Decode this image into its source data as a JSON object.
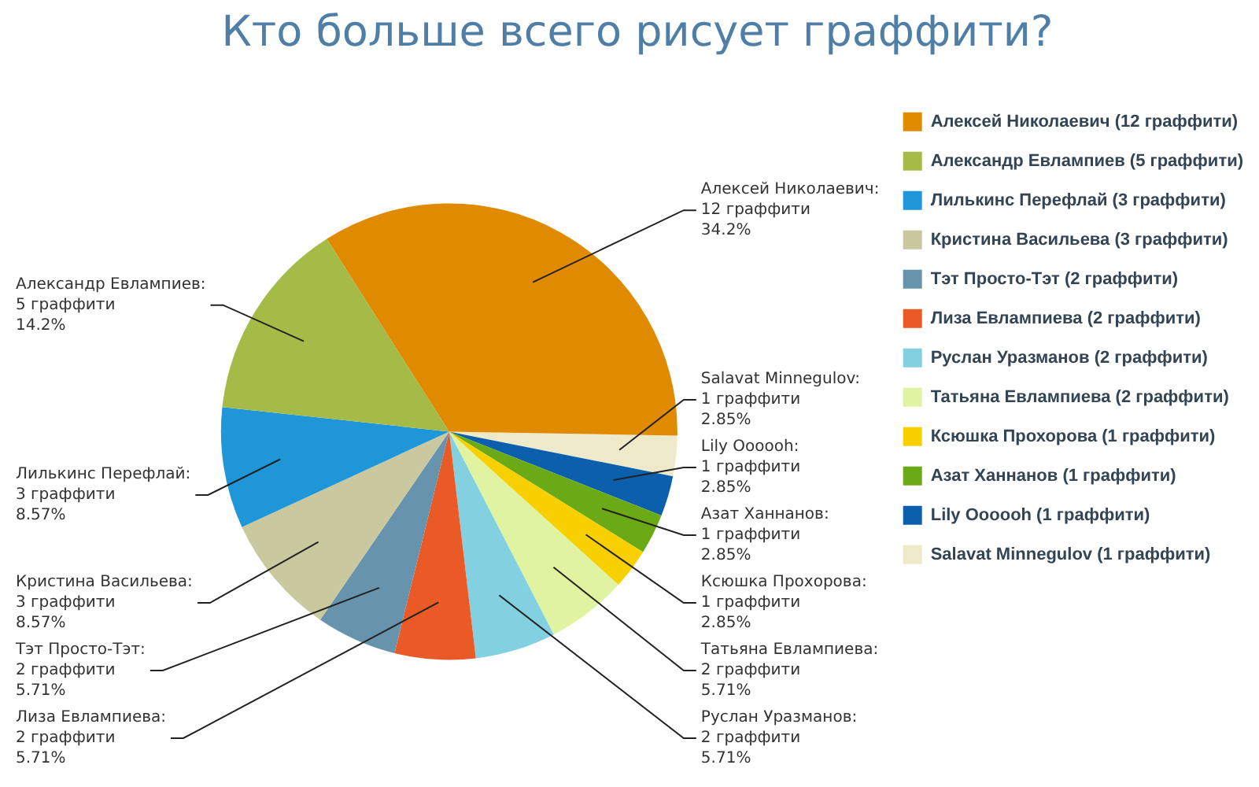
{
  "chart_data": {
    "type": "pie",
    "title": "Кто больше всего рисует граффити?",
    "categories": [
      "Алексей Николаевич (12 граффити)",
      "Александр Евлампиев (5 граффити)",
      "Лилькинс Перефлай (3 граффити)",
      "Кристина Васильева (3 граффити)",
      "Тэт Просто-Тэт (2 граффити)",
      "Лиза Евлампиева (2 граффити)",
      "Руслан Уразманов (2 граффити)",
      "Татьяна Евлампиева (2 граффити)",
      "Ксюшка Прохорова (1 граффити)",
      "Азат Ханнанов (1 граффити)",
      "Lily Oooooh (1 граффити)",
      "Salavat Minnegulov (1 граффити)"
    ],
    "values": [
      12,
      5,
      3,
      3,
      2,
      2,
      2,
      2,
      1,
      1,
      1,
      1
    ],
    "colors": [
      "#e08a00",
      "#a4bb48",
      "#1f96d8",
      "#c9c89e",
      "#6893ad",
      "#ea5a26",
      "#83d1e0",
      "#e0f3a0",
      "#f8d000",
      "#6aaa16",
      "#0b5fab",
      "#eee9c8"
    ],
    "value_labels": [
      "Алексей Николаевич:\n12 граффити\n34.2%",
      "Александр Евлампиев:\n5 граффити\n14.2%",
      "Лилькинс Перефлай:\n3 граффити\n8.57%",
      "Кристина Васильева:\n3 граффити\n8.57%",
      "Тэт Просто-Тэт:\n2 граффити\n5.71%",
      "Лиза Евлампиева:\n2 граффити\n5.71%",
      "Руслан Уразманов:\n2 граффити\n5.71%",
      "Татьяна Евлампиева:\n2 граффити\n5.71%",
      "Ксюшка Прохорова:\n1 граффити\n2.85%",
      "Азат Ханнанов:\n1 граффити\n2.85%",
      "Lily Oooooh:\n1 граффити\n2.85%",
      "Salavat Minnegulov:\n1 граффити\n2.85%"
    ],
    "legend": "top right"
  }
}
